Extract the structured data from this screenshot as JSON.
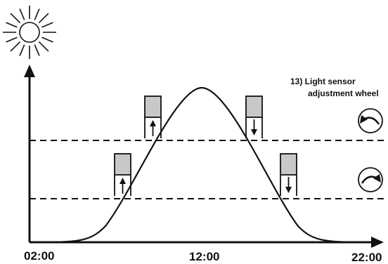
{
  "diagram": {
    "annotation_line1": "13) Light sensor",
    "annotation_line2": "adjustment wheel",
    "time_labels": [
      "02:00",
      "12:00",
      "22:00"
    ],
    "icons": {
      "sun": "sun-icon",
      "upper_wheel": "rotate-counterclockwise-icon",
      "lower_wheel": "rotate-clockwise-icon",
      "shutter_up": "shutter-open-arrow-icon",
      "shutter_down": "shutter-close-arrow-icon"
    },
    "colors": {
      "line": "#111111",
      "shutter_fill": "#c8c8c8"
    }
  }
}
